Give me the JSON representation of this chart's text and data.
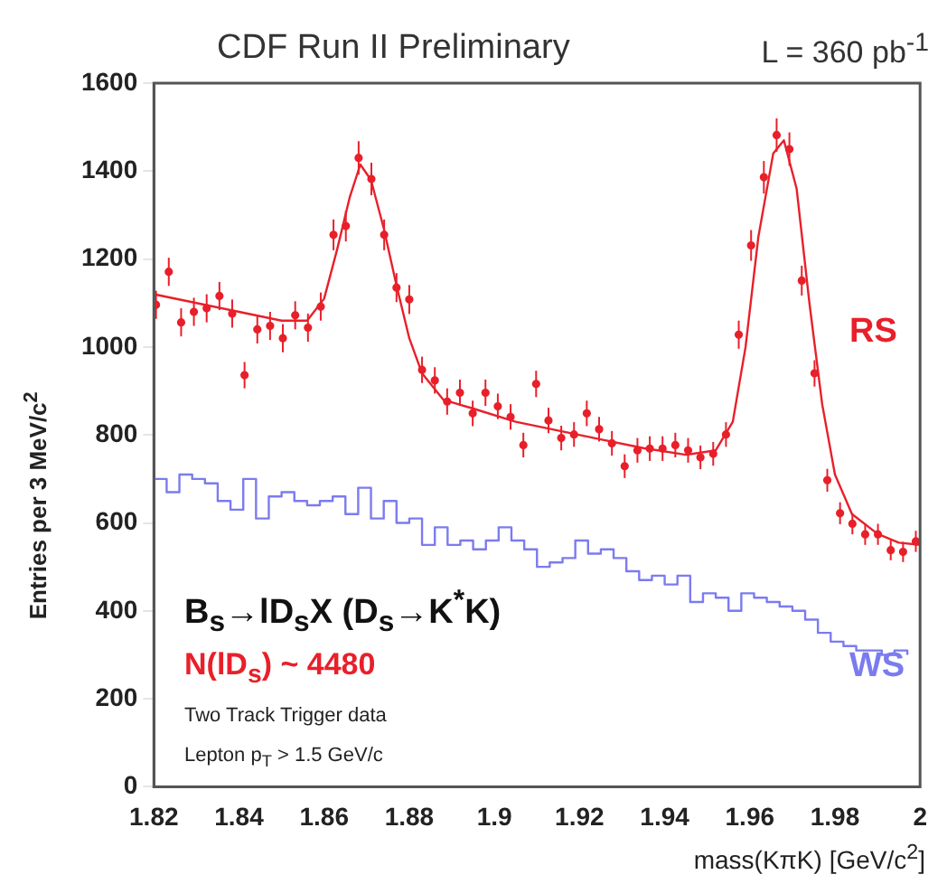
{
  "chart_data": {
    "type": "scatter",
    "title": "CDF Run II Preliminary",
    "subtitle": "L = 360 pb$^{-1}$",
    "xlabel": "mass(KπK) [GeV/c$^{2}$]",
    "ylabel": "Entries per 3 MeV/c$^{2}$",
    "xlim": [
      1.82,
      2.0
    ],
    "xticks": [
      1.82,
      1.84,
      1.86,
      1.88,
      1.9,
      1.92,
      1.94,
      1.96,
      1.98,
      2
    ],
    "ylim": [
      0,
      1600
    ],
    "yticks": [
      0,
      200,
      400,
      600,
      800,
      1000,
      1200,
      1400,
      1600
    ],
    "grid": false,
    "legend": false,
    "line_style": "solid",
    "annotations": [
      "B$_{s}$→lD$_{s}$X (D$_{s}$→K$^{*}$K)",
      "N(lD$_{s}$) ~ 4480",
      "Two Track Trigger data",
      "Lepton p$_{T}$ > 1.5 GeV/c"
    ],
    "series": [
      {
        "name": "RS",
        "type": "scatter",
        "marker": "circle",
        "color": "#e8202a",
        "x": [
          1.8205,
          1.8235,
          1.8264,
          1.8294,
          1.8324,
          1.8354,
          1.8384,
          1.8413,
          1.8443,
          1.8473,
          1.8503,
          1.8532,
          1.8562,
          1.8592,
          1.8622,
          1.8651,
          1.8681,
          1.8711,
          1.8741,
          1.877,
          1.88,
          1.883,
          1.886,
          1.8889,
          1.8919,
          1.8949,
          1.8979,
          1.9008,
          1.9038,
          1.9068,
          1.9098,
          1.9127,
          1.9157,
          1.9187,
          1.9217,
          1.9246,
          1.9276,
          1.9306,
          1.9336,
          1.9365,
          1.9395,
          1.9425,
          1.9455,
          1.9484,
          1.9514,
          1.9544,
          1.9574,
          1.9603,
          1.9633,
          1.9663,
          1.9693,
          1.9722,
          1.9752,
          1.9782,
          1.9812,
          1.9841,
          1.9871,
          1.9901,
          1.9931,
          1.996,
          1.999
        ],
        "values": [
          1096,
          1171,
          1056,
          1080,
          1088,
          1116,
          1076,
          936,
          1040,
          1048,
          1020,
          1072,
          1044,
          1092,
          1255,
          1275,
          1430,
          1382,
          1255,
          1135,
          1108,
          948,
          924,
          876,
          896,
          849,
          896,
          865,
          841,
          777,
          916,
          833,
          793,
          801,
          849,
          813,
          781,
          729,
          765,
          769,
          769,
          777,
          765,
          749,
          757,
          801,
          1028,
          1231,
          1386,
          1482,
          1450,
          1151,
          940,
          697,
          622,
          598,
          574,
          574,
          538,
          534,
          558
        ],
        "errors": [
          32,
          32,
          32,
          32,
          32,
          32,
          32,
          30,
          32,
          32,
          32,
          32,
          32,
          32,
          35,
          35,
          38,
          37,
          35,
          33,
          33,
          30,
          30,
          30,
          30,
          29,
          30,
          29,
          29,
          28,
          30,
          29,
          28,
          28,
          29,
          28,
          28,
          27,
          28,
          28,
          28,
          28,
          28,
          27,
          27,
          28,
          32,
          35,
          37,
          38,
          38,
          34,
          30,
          26,
          25,
          24,
          24,
          24,
          23,
          23,
          24
        ]
      },
      {
        "type": "line",
        "color": "#e8202a",
        "x": [
          1.82,
          1.83,
          1.84,
          1.85,
          1.856,
          1.86,
          1.863,
          1.866,
          1.8685,
          1.871,
          1.874,
          1.877,
          1.88,
          1.883,
          1.888,
          1.895,
          1.905,
          1.915,
          1.925,
          1.935,
          1.945,
          1.952,
          1.956,
          1.959,
          1.962,
          1.9655,
          1.968,
          1.971,
          1.974,
          1.977,
          1.98,
          1.984,
          1.99,
          1.995,
          2.0
        ],
        "values": [
          1120,
          1100,
          1080,
          1060,
          1060,
          1110,
          1220,
          1340,
          1415,
          1380,
          1270,
          1140,
          1020,
          940,
          880,
          860,
          830,
          810,
          790,
          770,
          755,
          765,
          830,
          1000,
          1250,
          1440,
          1470,
          1360,
          1100,
          870,
          710,
          620,
          575,
          555,
          550
        ]
      },
      {
        "name": "WS",
        "type": "step",
        "color": "#7b7bf0",
        "x": [
          1.82,
          1.823,
          1.826,
          1.829,
          1.832,
          1.835,
          1.838,
          1.841,
          1.844,
          1.847,
          1.85,
          1.853,
          1.856,
          1.859,
          1.862,
          1.865,
          1.868,
          1.871,
          1.874,
          1.877,
          1.88,
          1.883,
          1.886,
          1.889,
          1.892,
          1.895,
          1.898,
          1.901,
          1.904,
          1.907,
          1.91,
          1.913,
          1.916,
          1.919,
          1.922,
          1.925,
          1.928,
          1.931,
          1.934,
          1.937,
          1.94,
          1.943,
          1.946,
          1.949,
          1.952,
          1.955,
          1.958,
          1.961,
          1.964,
          1.967,
          1.97,
          1.973,
          1.976,
          1.979,
          1.982,
          1.985,
          1.988,
          1.991,
          1.994,
          1.997
        ],
        "values": [
          700,
          670,
          710,
          700,
          690,
          650,
          630,
          700,
          610,
          660,
          670,
          650,
          640,
          650,
          660,
          620,
          680,
          610,
          650,
          600,
          610,
          550,
          590,
          550,
          560,
          540,
          560,
          590,
          560,
          540,
          500,
          510,
          520,
          560,
          530,
          540,
          520,
          490,
          470,
          480,
          460,
          480,
          420,
          440,
          430,
          400,
          440,
          430,
          420,
          410,
          400,
          380,
          350,
          330,
          320,
          310,
          310,
          300,
          310,
          300
        ]
      }
    ]
  }
}
